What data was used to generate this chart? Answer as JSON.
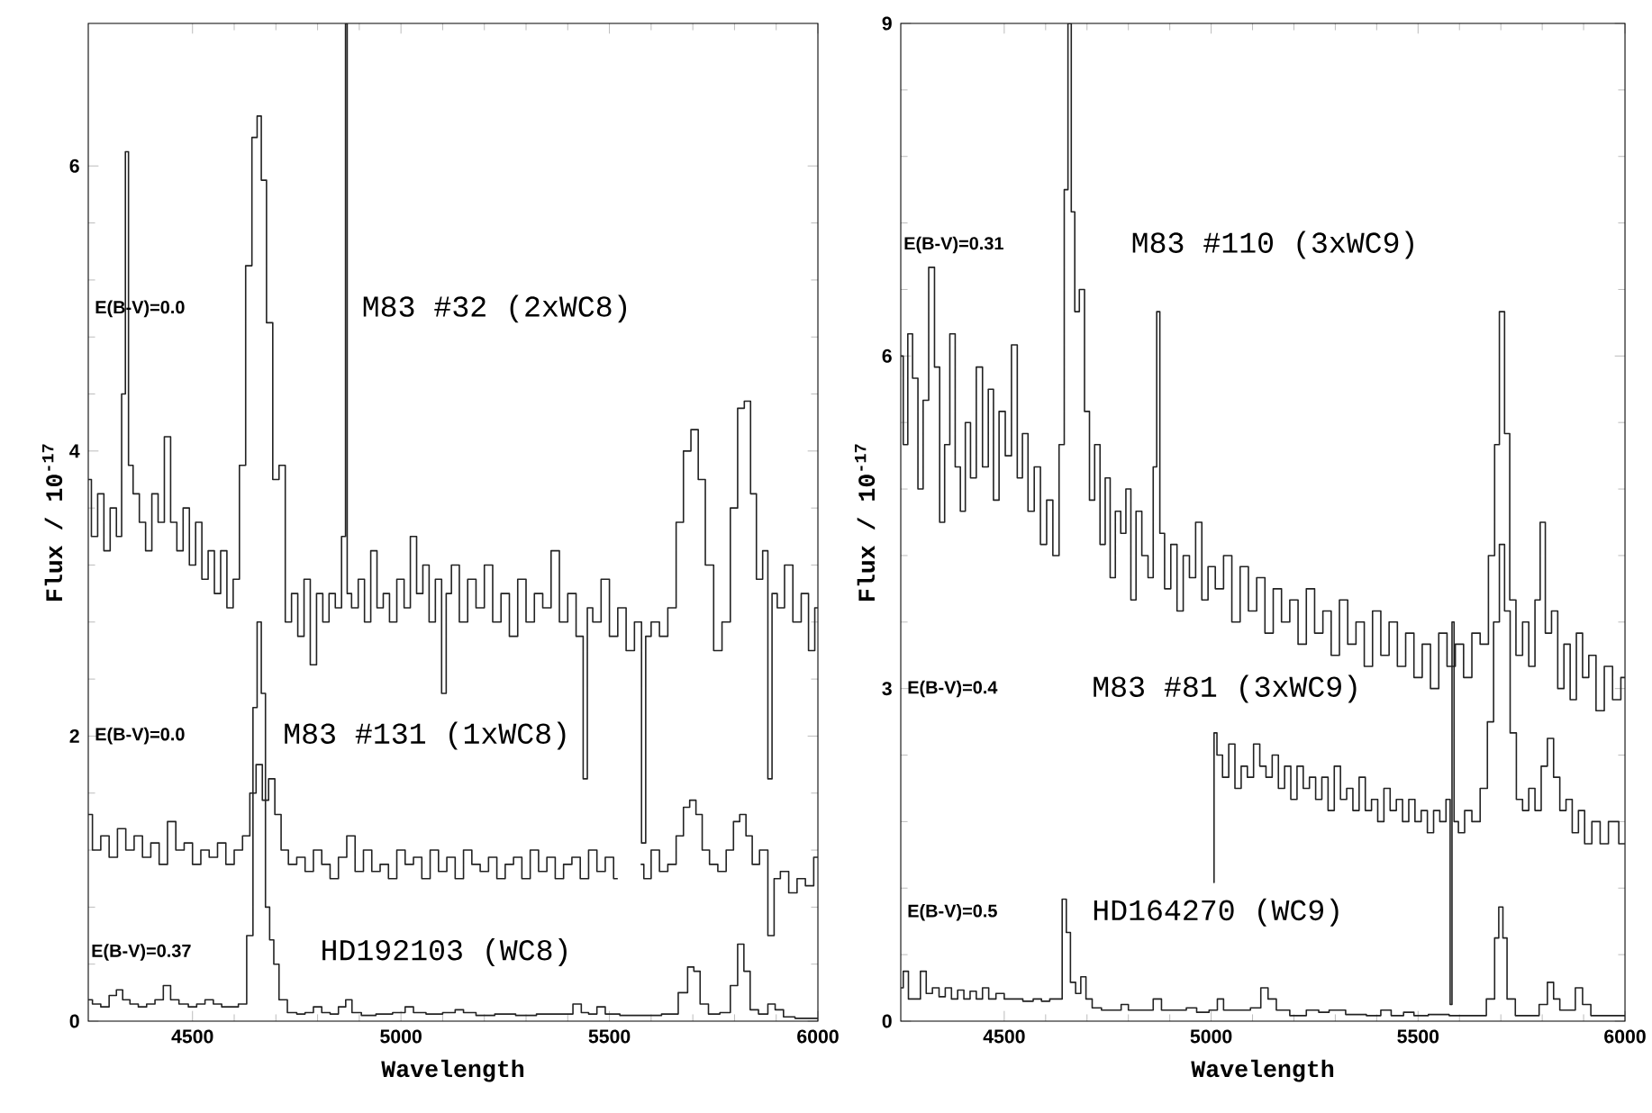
{
  "chart_data": [
    {
      "type": "step",
      "xlabel": "Wavelength",
      "ylabel": "Flux / 10$^{-17}$",
      "xlim": [
        4250,
        6000
      ],
      "xticks": [
        4500,
        5000,
        5500,
        6000
      ],
      "ylim": [
        0,
        7
      ],
      "yticks": [
        0,
        2,
        4,
        6
      ],
      "series": [
        {
          "color": "#222222",
          "x": [
            4250,
            4265,
            4280,
            4295,
            4310,
            4325,
            4335,
            4343,
            4350,
            4365,
            4380,
            4395,
            4410,
            4425,
            4440,
            4455,
            4470,
            4485,
            4500,
            4515,
            4530,
            4545,
            4560,
            4575,
            4590,
            4605,
            4620,
            4635,
            4650,
            4660,
            4670,
            4685,
            4700,
            4715,
            4730,
            4745,
            4760,
            4775,
            4790,
            4805,
            4820,
            4835,
            4850,
            4865,
            4869,
            4873,
            4890,
            4905,
            4920,
            4935,
            4950,
            4965,
            4980,
            5000,
            5015,
            5030,
            5045,
            5060,
            5075,
            5090,
            5105,
            5112,
            5130,
            5150,
            5170,
            5190,
            5210,
            5230,
            5250,
            5270,
            5290,
            5310,
            5330,
            5350,
            5370,
            5390,
            5410,
            5430,
            5444,
            5450,
            5470,
            5490,
            5510,
            5530,
            5550,
            5570,
            5584,
            5590,
            5610,
            5630,
            5650,
            5670,
            5685,
            5706,
            5720,
            5740,
            5760,
            5780,
            5800,
            5815,
            5832,
            5845,
            5860,
            5875,
            5885,
            5895,
            5910,
            5930,
            5950,
            5970,
            5985,
            6000
          ],
          "values": [
            3.8,
            3.4,
            3.7,
            3.3,
            3.6,
            3.4,
            4.4,
            6.1,
            3.9,
            3.7,
            3.5,
            3.3,
            3.7,
            3.5,
            4.1,
            3.5,
            3.3,
            3.6,
            3.2,
            3.5,
            3.1,
            3.3,
            3.0,
            3.3,
            2.9,
            3.1,
            3.9,
            5.3,
            6.2,
            6.35,
            5.9,
            4.9,
            3.8,
            3.9,
            2.8,
            3.0,
            2.7,
            3.1,
            2.5,
            3.0,
            2.8,
            3.0,
            2.9,
            3.4,
            7.0,
            3.0,
            2.9,
            3.1,
            2.8,
            3.3,
            2.9,
            3.0,
            2.8,
            3.1,
            2.9,
            3.4,
            3.0,
            3.2,
            2.8,
            3.1,
            2.3,
            3.0,
            3.2,
            2.8,
            3.1,
            2.9,
            3.2,
            2.8,
            3.0,
            2.7,
            3.1,
            2.8,
            3.0,
            2.9,
            3.3,
            2.8,
            3.0,
            2.7,
            1.7,
            2.9,
            2.8,
            3.1,
            2.7,
            2.9,
            2.6,
            2.8,
            1.25,
            2.7,
            2.8,
            2.7,
            2.9,
            3.5,
            4.0,
            4.15,
            3.8,
            3.2,
            2.6,
            2.8,
            3.6,
            4.3,
            4.35,
            3.7,
            3.1,
            3.3,
            1.7,
            3.0,
            2.9,
            3.2,
            2.8,
            3.0,
            2.6,
            2.9
          ]
        },
        {
          "color": "#222222",
          "x": [
            4250,
            4270,
            4290,
            4310,
            4330,
            4350,
            4370,
            4390,
            4410,
            4430,
            4450,
            4470,
            4490,
            4510,
            4530,
            4550,
            4570,
            4590,
            4610,
            4630,
            4645,
            4660,
            4675,
            4690,
            4705,
            4720,
            4740,
            4760,
            4780,
            4800,
            4820,
            4840,
            4860,
            4880,
            4900,
            4920,
            4940,
            4960,
            4980,
            5000,
            5020,
            5040,
            5060,
            5080,
            5100,
            5120,
            5140,
            5160,
            5180,
            5200,
            5220,
            5240,
            5260,
            5280,
            5300,
            5320,
            5340,
            5360,
            5380,
            5400,
            5420,
            5440,
            5460,
            5480,
            5500,
            5520,
            5535,
            5560,
            5575,
            5590,
            5610,
            5630,
            5650,
            5670,
            5685,
            5700,
            5715,
            5730,
            5750,
            5770,
            5790,
            5805,
            5820,
            5835,
            5850,
            5870,
            5890,
            5900,
            5920,
            5940,
            5960,
            5980,
            6000
          ],
          "values": [
            1.45,
            1.2,
            1.3,
            1.15,
            1.35,
            1.2,
            1.3,
            1.15,
            1.25,
            1.1,
            1.4,
            1.2,
            1.25,
            1.1,
            1.2,
            1.15,
            1.25,
            1.1,
            1.2,
            1.3,
            1.6,
            1.8,
            1.55,
            1.7,
            1.45,
            1.2,
            1.1,
            1.15,
            1.05,
            1.2,
            1.1,
            1.0,
            1.15,
            1.3,
            1.05,
            1.2,
            1.05,
            1.1,
            1.0,
            1.2,
            1.1,
            1.15,
            1.0,
            1.2,
            1.05,
            1.15,
            1.0,
            1.2,
            1.1,
            1.05,
            1.15,
            1.0,
            1.1,
            1.15,
            1.0,
            1.2,
            1.05,
            1.15,
            1.0,
            1.1,
            1.15,
            1.0,
            1.2,
            1.05,
            1.15,
            1.0,
            null,
            null,
            1.1,
            1.0,
            1.2,
            1.05,
            1.1,
            1.3,
            1.5,
            1.55,
            1.45,
            1.2,
            1.1,
            1.05,
            1.2,
            1.4,
            1.45,
            1.3,
            1.1,
            1.2,
            0.6,
            1.0,
            1.05,
            0.9,
            1.0,
            0.95,
            1.15
          ]
        },
        {
          "color": "#222222",
          "x": [
            4250,
            4270,
            4290,
            4310,
            4325,
            4340,
            4360,
            4380,
            4400,
            4420,
            4440,
            4455,
            4480,
            4500,
            4520,
            4540,
            4560,
            4580,
            4600,
            4620,
            4640,
            4650,
            4660,
            4670,
            4680,
            4690,
            4700,
            4715,
            4740,
            4760,
            4780,
            4800,
            4820,
            4840,
            4860,
            4875,
            4890,
            4920,
            4960,
            5000,
            5020,
            5040,
            5080,
            5120,
            5140,
            5160,
            5200,
            5250,
            5300,
            5350,
            5400,
            5425,
            5440,
            5460,
            5480,
            5500,
            5550,
            5600,
            5650,
            5680,
            5695,
            5710,
            5725,
            5750,
            5780,
            5800,
            5815,
            5830,
            5845,
            5870,
            5890,
            5905,
            5930,
            5960,
            6000
          ],
          "values": [
            0.15,
            0.12,
            0.1,
            0.18,
            0.22,
            0.15,
            0.12,
            0.1,
            0.12,
            0.15,
            0.25,
            0.15,
            0.12,
            0.1,
            0.12,
            0.15,
            0.12,
            0.1,
            0.1,
            0.12,
            0.6,
            2.2,
            2.8,
            2.3,
            0.8,
            0.57,
            0.4,
            0.15,
            0.06,
            0.05,
            0.06,
            0.1,
            0.06,
            0.05,
            0.1,
            0.15,
            0.06,
            0.04,
            0.05,
            0.06,
            0.1,
            0.06,
            0.05,
            0.06,
            0.08,
            0.06,
            0.04,
            0.05,
            0.04,
            0.05,
            0.05,
            0.12,
            0.06,
            0.05,
            0.1,
            0.05,
            0.04,
            0.04,
            0.05,
            0.2,
            0.38,
            0.35,
            0.12,
            0.05,
            0.06,
            0.25,
            0.54,
            0.35,
            0.08,
            0.05,
            0.12,
            0.08,
            0.03,
            0.02,
            0.02
          ]
        }
      ],
      "annotations": [
        "E(B-V)=0.0",
        "M83 #32 (2xWC8)",
        "E(B-V)=0.0",
        "M83 #131 (1xWC8)",
        "E(B-V)=0.37",
        "HD192103 (WC8)"
      ]
    },
    {
      "type": "step",
      "xlabel": "Wavelength",
      "ylabel": "Flux / 10$^{-17}$",
      "xlim": [
        4250,
        6000
      ],
      "xticks": [
        4500,
        5000,
        5500,
        6000
      ],
      "ylim": [
        0,
        9
      ],
      "yticks": [
        0,
        3,
        6,
        9
      ],
      "series": [
        {
          "color": "#222222",
          "x": [
            4250,
            4262,
            4272,
            4285,
            4298,
            4310,
            4325,
            4338,
            4350,
            4362,
            4375,
            4388,
            4400,
            4412,
            4425,
            4440,
            4455,
            4468,
            4480,
            4495,
            4510,
            4525,
            4538,
            4550,
            4565,
            4580,
            4595,
            4610,
            4625,
            4640,
            4650,
            4658,
            4666,
            4675,
            4688,
            4700,
            4712,
            4725,
            4738,
            4750,
            4762,
            4775,
            4788,
            4800,
            4812,
            4825,
            4840,
            4855,
            4865,
            4872,
            4880,
            4895,
            4910,
            4925,
            4940,
            4955,
            4970,
            4985,
            5000,
            5020,
            5040,
            5060,
            5080,
            5100,
            5120,
            5140,
            5160,
            5180,
            5200,
            5220,
            5240,
            5260,
            5280,
            5300,
            5320,
            5340,
            5360,
            5380,
            5400,
            5420,
            5440,
            5460,
            5480,
            5500,
            5520,
            5540,
            5560,
            5580,
            5600,
            5620,
            5640,
            5660,
            5680,
            5690,
            5703,
            5715,
            5728,
            5745,
            5760,
            5775,
            5790,
            5800,
            5815,
            5830,
            5845,
            5860,
            5875,
            5890,
            5905,
            5920,
            5940,
            5960,
            5980,
            6000
          ],
          "values": [
            6.0,
            5.2,
            6.2,
            5.8,
            4.8,
            5.6,
            6.8,
            5.9,
            4.5,
            5.2,
            6.2,
            5.0,
            4.6,
            5.4,
            4.9,
            5.9,
            5.0,
            5.7,
            4.7,
            5.5,
            5.1,
            6.1,
            4.9,
            5.3,
            4.6,
            5.0,
            4.3,
            4.7,
            4.2,
            5.2,
            7.5,
            9.0,
            7.3,
            6.4,
            6.6,
            5.5,
            4.7,
            5.2,
            4.3,
            4.9,
            4.0,
            4.6,
            4.4,
            4.8,
            3.8,
            4.6,
            4.2,
            4.0,
            5.0,
            6.4,
            4.4,
            3.9,
            4.3,
            3.7,
            4.2,
            4.0,
            4.5,
            3.8,
            4.1,
            3.9,
            4.2,
            3.6,
            4.1,
            3.7,
            4.0,
            3.5,
            3.9,
            3.6,
            3.8,
            3.4,
            3.9,
            3.5,
            3.7,
            3.3,
            3.8,
            3.4,
            3.6,
            3.2,
            3.7,
            3.3,
            3.6,
            3.2,
            3.5,
            3.1,
            3.4,
            3.0,
            3.5,
            3.2,
            3.4,
            3.1,
            3.5,
            3.4,
            4.2,
            5.2,
            6.4,
            5.3,
            3.8,
            3.3,
            3.6,
            3.2,
            3.8,
            4.5,
            3.5,
            3.7,
            3.0,
            3.4,
            2.9,
            3.5,
            3.1,
            3.3,
            2.8,
            3.2,
            2.9,
            3.1
          ]
        },
        {
          "color": "#222222",
          "x": [
            5006,
            5008,
            5020,
            5035,
            5050,
            5065,
            5080,
            5095,
            5110,
            5125,
            5140,
            5155,
            5170,
            5185,
            5200,
            5215,
            5230,
            5245,
            5260,
            5275,
            5290,
            5305,
            5320,
            5335,
            5350,
            5365,
            5380,
            5395,
            5410,
            5425,
            5440,
            5455,
            5470,
            5485,
            5500,
            5515,
            5530,
            5545,
            5560,
            5575,
            5580,
            5584,
            5590,
            5605,
            5620,
            5640,
            5660,
            5675,
            5690,
            5703,
            5715,
            5730,
            5745,
            5760,
            5775,
            5790,
            5805,
            5820,
            5835,
            5850,
            5865,
            5880,
            5895,
            5910,
            5930,
            5950,
            5970,
            6000
          ],
          "values": [
            1.25,
            2.6,
            2.4,
            2.2,
            2.5,
            2.1,
            2.3,
            2.2,
            2.5,
            2.3,
            2.2,
            2.4,
            2.1,
            2.3,
            2.0,
            2.3,
            2.1,
            2.2,
            2.0,
            2.2,
            1.9,
            2.3,
            2.0,
            2.1,
            1.9,
            2.2,
            1.9,
            2.0,
            1.8,
            2.1,
            1.9,
            2.0,
            1.8,
            2.0,
            1.8,
            1.9,
            1.7,
            1.9,
            1.8,
            2.0,
            0.15,
            3.6,
            1.8,
            1.7,
            1.9,
            1.8,
            2.1,
            2.7,
            3.6,
            4.3,
            3.7,
            2.6,
            2.0,
            1.9,
            2.1,
            1.9,
            2.3,
            2.55,
            2.2,
            1.9,
            2.0,
            1.7,
            1.9,
            1.6,
            1.8,
            1.6,
            1.8,
            1.6
          ]
        },
        {
          "color": "#222222",
          "x": [
            4250,
            4262,
            4275,
            4290,
            4305,
            4318,
            4335,
            4350,
            4365,
            4380,
            4395,
            4410,
            4425,
            4440,
            4455,
            4470,
            4490,
            4510,
            4530,
            4560,
            4580,
            4600,
            4620,
            4635,
            4645,
            4655,
            4665,
            4680,
            4690,
            4705,
            4720,
            4750,
            4775,
            4790,
            4810,
            4850,
            4870,
            4890,
            4930,
            4950,
            4980,
            5010,
            5020,
            5040,
            5080,
            5110,
            5130,
            5145,
            5170,
            5210,
            5250,
            5270,
            5300,
            5350,
            5400,
            5420,
            5450,
            5480,
            5500,
            5550,
            5600,
            5650,
            5680,
            5690,
            5700,
            5710,
            5720,
            5750,
            5780,
            5805,
            5820,
            5835,
            5850,
            5870,
            5890,
            5905,
            5930,
            5960,
            6000
          ],
          "values": [
            0.3,
            0.45,
            0.2,
            0.2,
            0.45,
            0.25,
            0.3,
            0.22,
            0.3,
            0.2,
            0.28,
            0.2,
            0.27,
            0.2,
            0.3,
            0.2,
            0.25,
            0.2,
            0.2,
            0.18,
            0.2,
            0.18,
            0.2,
            0.2,
            1.1,
            0.8,
            0.35,
            0.25,
            0.4,
            0.2,
            0.12,
            0.1,
            0.1,
            0.15,
            0.1,
            0.1,
            0.2,
            0.1,
            0.1,
            0.12,
            0.08,
            0.1,
            0.2,
            0.1,
            0.1,
            0.12,
            0.3,
            0.2,
            0.1,
            0.05,
            0.1,
            0.08,
            0.1,
            0.06,
            0.05,
            0.1,
            0.05,
            0.08,
            0.05,
            0.06,
            0.05,
            0.05,
            0.2,
            0.75,
            1.03,
            0.75,
            0.2,
            0.05,
            0.05,
            0.15,
            0.35,
            0.2,
            0.1,
            0.1,
            0.3,
            0.15,
            0.05,
            0.05,
            0.05
          ]
        }
      ],
      "annotations": [
        "E(B-V)=0.31",
        "M83 #110 (3xWC9)",
        "E(B-V)=0.4",
        "M83 #81 (3xWC9)",
        "E(B-V)=0.5",
        "HD164270 (WC9)"
      ]
    }
  ]
}
